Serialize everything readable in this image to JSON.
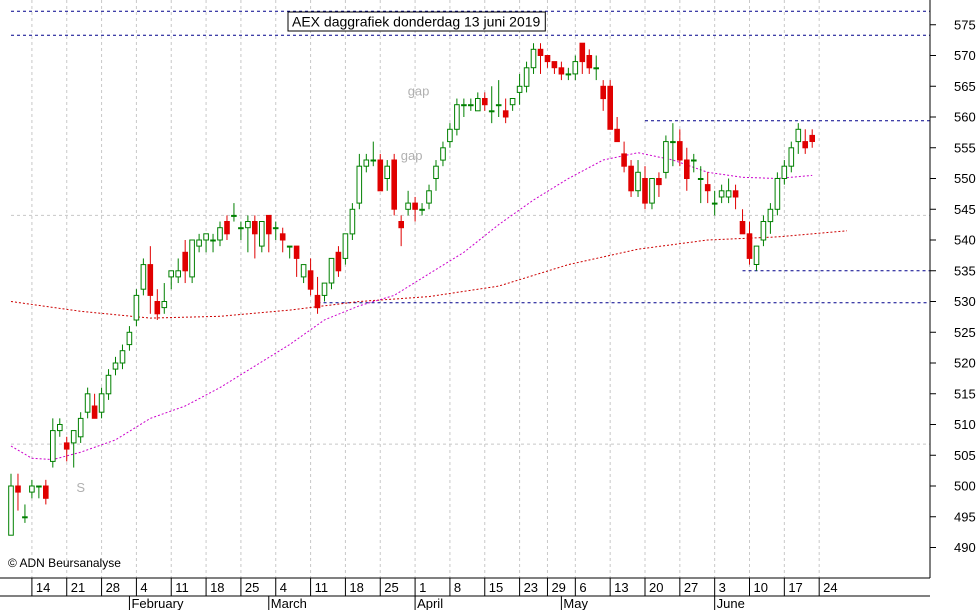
{
  "chart_data": {
    "type": "candlestick",
    "title": "AEX daggrafiek donderdag 13 juni 2019",
    "copyright": "© ADN Beursanalyse",
    "ylim": [
      485,
      580
    ],
    "yticks": [
      490,
      495,
      500,
      505,
      510,
      515,
      520,
      525,
      530,
      535,
      540,
      545,
      550,
      555,
      560,
      565,
      570,
      575
    ],
    "xlim": [
      0,
      132
    ],
    "x_ticks": [
      {
        "i": 3,
        "label": "14"
      },
      {
        "i": 8,
        "label": "21"
      },
      {
        "i": 13,
        "label": "28"
      },
      {
        "i": 18,
        "label": "4"
      },
      {
        "i": 23,
        "label": "11"
      },
      {
        "i": 28,
        "label": "18"
      },
      {
        "i": 33,
        "label": "25"
      },
      {
        "i": 38,
        "label": "4"
      },
      {
        "i": 43,
        "label": "11"
      },
      {
        "i": 48,
        "label": "18"
      },
      {
        "i": 53,
        "label": "25"
      },
      {
        "i": 58,
        "label": "1"
      },
      {
        "i": 63,
        "label": "8"
      },
      {
        "i": 68,
        "label": "15"
      },
      {
        "i": 73,
        "label": "23"
      },
      {
        "i": 77,
        "label": "29"
      },
      {
        "i": 81,
        "label": "6"
      },
      {
        "i": 86,
        "label": "13"
      },
      {
        "i": 91,
        "label": "20"
      },
      {
        "i": 96,
        "label": "27"
      },
      {
        "i": 101,
        "label": "3"
      },
      {
        "i": 106,
        "label": "10"
      },
      {
        "i": 111,
        "label": "17"
      },
      {
        "i": 116,
        "label": "24"
      }
    ],
    "months": [
      {
        "i": 17,
        "label": "February"
      },
      {
        "i": 37,
        "label": "March"
      },
      {
        "i": 58,
        "label": "April"
      },
      {
        "i": 79,
        "label": "May"
      },
      {
        "i": 101,
        "label": "June"
      }
    ],
    "candles": [
      [
        0,
        492,
        502,
        492,
        500
      ],
      [
        1,
        500,
        502,
        496,
        499
      ],
      [
        2,
        495,
        497,
        494,
        495
      ],
      [
        3,
        499,
        501,
        498,
        500
      ],
      [
        4,
        500,
        500,
        498,
        500
      ],
      [
        5,
        500,
        501,
        497,
        498
      ],
      [
        6,
        504,
        511,
        503,
        509
      ],
      [
        7,
        509,
        511,
        508,
        510
      ],
      [
        8,
        507,
        508,
        504,
        506
      ],
      [
        9,
        507,
        509,
        503,
        509
      ],
      [
        10,
        508,
        512,
        507,
        511
      ],
      [
        11,
        512,
        516,
        511,
        515
      ],
      [
        12,
        513,
        515,
        511,
        511
      ],
      [
        13,
        512,
        516,
        511,
        515
      ],
      [
        14,
        515,
        519,
        514,
        518
      ],
      [
        15,
        519,
        521,
        518,
        520
      ],
      [
        16,
        520,
        523,
        519,
        522
      ],
      [
        17,
        523,
        526,
        522,
        525
      ],
      [
        18,
        527,
        532,
        526,
        531
      ],
      [
        19,
        532,
        537,
        531,
        536
      ],
      [
        20,
        536,
        539,
        528,
        531
      ],
      [
        21,
        530,
        532,
        527,
        528
      ],
      [
        22,
        529,
        533,
        528,
        530
      ],
      [
        23,
        534,
        535,
        532,
        535
      ],
      [
        24,
        534,
        537,
        533,
        535
      ],
      [
        25,
        538,
        540,
        533,
        535
      ],
      [
        26,
        534,
        540,
        533,
        540
      ],
      [
        27,
        539,
        541,
        538,
        540
      ],
      [
        28,
        540,
        541,
        538,
        541
      ],
      [
        29,
        540,
        541,
        538,
        540
      ],
      [
        30,
        540,
        543,
        539,
        542
      ],
      [
        31,
        543,
        544,
        540,
        541
      ],
      [
        32,
        544,
        546,
        543,
        544
      ],
      [
        33,
        542,
        543,
        540,
        542
      ],
      [
        34,
        542,
        544,
        538,
        543
      ],
      [
        35,
        543,
        544,
        537,
        541
      ],
      [
        36,
        539,
        543,
        538,
        543
      ],
      [
        37,
        544,
        544,
        538,
        541
      ],
      [
        38,
        542,
        543,
        540,
        542
      ],
      [
        39,
        541,
        542,
        538,
        540
      ],
      [
        40,
        539,
        539,
        537,
        539
      ],
      [
        41,
        539,
        539,
        534,
        537
      ],
      [
        42,
        534,
        536,
        533,
        536
      ],
      [
        43,
        535,
        537,
        531,
        532
      ],
      [
        44,
        531,
        534,
        528,
        529
      ],
      [
        45,
        531,
        533,
        530,
        533
      ],
      [
        46,
        533,
        537,
        532,
        537
      ],
      [
        47,
        538,
        539,
        534,
        535
      ],
      [
        48,
        537,
        541,
        536,
        541
      ],
      [
        49,
        541,
        546,
        540,
        545
      ],
      [
        50,
        546,
        554,
        545,
        552
      ],
      [
        51,
        552,
        554,
        551,
        553
      ],
      [
        52,
        553,
        556,
        552,
        553
      ],
      [
        53,
        553,
        554,
        548,
        548
      ],
      [
        54,
        550,
        553,
        548,
        552
      ],
      [
        55,
        553,
        554,
        544,
        545
      ],
      [
        56,
        543,
        544,
        539,
        542
      ],
      [
        57,
        545,
        548,
        544,
        546
      ],
      [
        58,
        546,
        547,
        543,
        545
      ],
      [
        59,
        545,
        546,
        544,
        545
      ],
      [
        60,
        546,
        549,
        545,
        548
      ],
      [
        61,
        550,
        553,
        548,
        552
      ],
      [
        62,
        553,
        556,
        552,
        555
      ],
      [
        63,
        556,
        559,
        555,
        558
      ],
      [
        64,
        558,
        563,
        557,
        562
      ],
      [
        65,
        562,
        563,
        560,
        562
      ],
      [
        66,
        562,
        563,
        561,
        562
      ],
      [
        67,
        561,
        564,
        561,
        563
      ],
      [
        68,
        563,
        564,
        561,
        562
      ],
      [
        69,
        561,
        565,
        559,
        561
      ],
      [
        70,
        562,
        566,
        560,
        562
      ],
      [
        71,
        561,
        563,
        559,
        560
      ],
      [
        72,
        562,
        563,
        561,
        563
      ],
      [
        73,
        564,
        567,
        562,
        565
      ],
      [
        74,
        565,
        569,
        564,
        568
      ],
      [
        75,
        568,
        572,
        567,
        571
      ],
      [
        76,
        571,
        572,
        567,
        570
      ],
      [
        77,
        570,
        570,
        568,
        569
      ],
      [
        78,
        569,
        569,
        567,
        568
      ],
      [
        79,
        568,
        569,
        566,
        567
      ],
      [
        80,
        567,
        568,
        566,
        567
      ],
      [
        81,
        567,
        570,
        566,
        569
      ],
      [
        82,
        572,
        572,
        567,
        569
      ],
      [
        83,
        570,
        571,
        567,
        568
      ],
      [
        84,
        568,
        570,
        566,
        568
      ],
      [
        85,
        565,
        566,
        561,
        563
      ],
      [
        86,
        565,
        566,
        558,
        558
      ],
      [
        87,
        558,
        560,
        556,
        556
      ],
      [
        88,
        554,
        556,
        551,
        552
      ],
      [
        89,
        552,
        553,
        547,
        548
      ],
      [
        90,
        548,
        553,
        547,
        551
      ],
      [
        91,
        550,
        552,
        545,
        546
      ],
      [
        92,
        546,
        550,
        545,
        550
      ],
      [
        93,
        550,
        551,
        547,
        549
      ],
      [
        94,
        551,
        557,
        550,
        556
      ],
      [
        95,
        556,
        559,
        552,
        556
      ],
      [
        96,
        556,
        558,
        552,
        553
      ],
      [
        97,
        553,
        555,
        548,
        550
      ],
      [
        98,
        553,
        554,
        551,
        553
      ],
      [
        99,
        550,
        552,
        546,
        550
      ],
      [
        100,
        549,
        551,
        546,
        548
      ],
      [
        101,
        546,
        548,
        544,
        546
      ],
      [
        102,
        547,
        549,
        546,
        548
      ],
      [
        103,
        547,
        550,
        546,
        548
      ],
      [
        104,
        548,
        549,
        545,
        547
      ],
      [
        105,
        543,
        545,
        541,
        541
      ],
      [
        106,
        541,
        543,
        536,
        537
      ],
      [
        107,
        536,
        539,
        535,
        539
      ],
      [
        108,
        540,
        544,
        539,
        543
      ],
      [
        109,
        543,
        546,
        541,
        545
      ],
      [
        110,
        545,
        551,
        544,
        550
      ],
      [
        111,
        550,
        553,
        549,
        552
      ],
      [
        112,
        552,
        556,
        551,
        555
      ],
      [
        113,
        556,
        559,
        554,
        558
      ],
      [
        114,
        556,
        558,
        554,
        555
      ],
      [
        115,
        557,
        558,
        555,
        556
      ]
    ],
    "ma_slow": [
      [
        0,
        530
      ],
      [
        10,
        528.4
      ],
      [
        20,
        527.3
      ],
      [
        30,
        527.6
      ],
      [
        40,
        528.6
      ],
      [
        50,
        530
      ],
      [
        60,
        530.8
      ],
      [
        70,
        532.5
      ],
      [
        80,
        536
      ],
      [
        90,
        538.5
      ],
      [
        100,
        540
      ],
      [
        110,
        540.5
      ],
      [
        120,
        541.5
      ]
    ],
    "ma_fast": [
      [
        0,
        506.5
      ],
      [
        3,
        504.5
      ],
      [
        6,
        504.3
      ],
      [
        10,
        505.5
      ],
      [
        15,
        507.5
      ],
      [
        20,
        511
      ],
      [
        25,
        513
      ],
      [
        30,
        516
      ],
      [
        35,
        519.5
      ],
      [
        40,
        523
      ],
      [
        45,
        527
      ],
      [
        50,
        529.3
      ],
      [
        55,
        531
      ],
      [
        60,
        534.5
      ],
      [
        65,
        538
      ],
      [
        70,
        542.5
      ],
      [
        75,
        546.5
      ],
      [
        80,
        550
      ],
      [
        85,
        553
      ],
      [
        90,
        554.2
      ],
      [
        95,
        553
      ],
      [
        100,
        551
      ],
      [
        105,
        550.2
      ],
      [
        110,
        550
      ],
      [
        115,
        550.5
      ]
    ],
    "hlines": [
      {
        "y": 577.2,
        "from": 0,
        "to": 132,
        "color": "#00008b"
      },
      {
        "y": 573.3,
        "from": 0,
        "to": 132,
        "color": "#00008b"
      },
      {
        "y": 559.4,
        "from": 91,
        "to": 132,
        "color": "#00008b"
      },
      {
        "y": 535,
        "from": 105,
        "to": 132,
        "color": "#00008b"
      },
      {
        "y": 529.8,
        "from": 44,
        "to": 132,
        "color": "#00008b"
      },
      {
        "y": 506.8,
        "from": 0,
        "to": 132,
        "color": "#c8c8c8"
      },
      {
        "y": 544,
        "from": 0,
        "to": 132,
        "color": "#c8c8c8"
      }
    ],
    "annotations": [
      {
        "text": "gap",
        "x": 58.5,
        "y": 563.5
      },
      {
        "text": "gap",
        "x": 57.5,
        "y": 553
      },
      {
        "text": "S",
        "x": 10,
        "y": 499
      }
    ],
    "colors": {
      "up": "#008000",
      "down": "#e00000",
      "ma_slow": "#cc0000",
      "ma_fast": "#cc00cc",
      "grid": "#c8c8c8",
      "level": "#00008b"
    }
  }
}
